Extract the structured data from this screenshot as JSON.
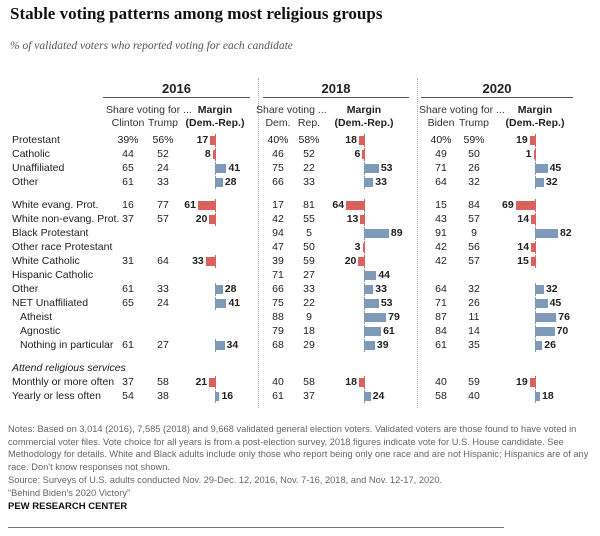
{
  "title": "Stable voting patterns among most religious groups",
  "subtitle": "% of validated voters who reported voting for each candidate",
  "chart_data": {
    "type": "table",
    "title": "Stable voting patterns among most religious groups",
    "subtitle": "% of validated voters who reported voting for each candidate",
    "colors": {
      "dem": "#7d9ab8",
      "rep": "#d9635c"
    },
    "years": [
      {
        "year": "2016",
        "share_label": "Share voting for ...",
        "dem_label": "Clinton",
        "rep_label": "Trump",
        "margin_label": "Margin",
        "margin_sub": "(Dem.-Rep.)"
      },
      {
        "year": "2018",
        "share_label": "Share voting ...",
        "dem_label": "Dem.",
        "rep_label": "Rep.",
        "margin_label": "Margin",
        "margin_sub": "(Dem.-Rep.)"
      },
      {
        "year": "2020",
        "share_label": "Share voting for ...",
        "dem_label": "Biden",
        "rep_label": "Trump",
        "margin_label": "Margin",
        "margin_sub": "(Dem.-Rep.)"
      }
    ],
    "rows": [
      {
        "label": "Protestant",
        "group": 0,
        "indent": false,
        "values": [
          {
            "d": "39%",
            "r": "56%",
            "m": 17,
            "p": "R"
          },
          {
            "d": "40%",
            "r": "58%",
            "m": 18,
            "p": "R"
          },
          {
            "d": "40%",
            "r": "59%",
            "m": 19,
            "p": "R"
          }
        ]
      },
      {
        "label": "Catholic",
        "group": 0,
        "indent": false,
        "values": [
          {
            "d": "44",
            "r": "52",
            "m": 8,
            "p": "R"
          },
          {
            "d": "46",
            "r": "52",
            "m": 6,
            "p": "R"
          },
          {
            "d": "49",
            "r": "50",
            "m": 1,
            "p": "R"
          }
        ]
      },
      {
        "label": "Unaffiliated",
        "group": 0,
        "indent": false,
        "values": [
          {
            "d": "65",
            "r": "24",
            "m": 41,
            "p": "D"
          },
          {
            "d": "75",
            "r": "22",
            "m": 53,
            "p": "D"
          },
          {
            "d": "71",
            "r": "26",
            "m": 45,
            "p": "D"
          }
        ]
      },
      {
        "label": "Other",
        "group": 0,
        "indent": false,
        "values": [
          {
            "d": "61",
            "r": "33",
            "m": 28,
            "p": "D"
          },
          {
            "d": "66",
            "r": "33",
            "m": 33,
            "p": "D"
          },
          {
            "d": "64",
            "r": "32",
            "m": 32,
            "p": "D"
          }
        ]
      },
      {
        "label": "White evang. Prot.",
        "group": 1,
        "indent": false,
        "values": [
          {
            "d": "16",
            "r": "77",
            "m": 61,
            "p": "R"
          },
          {
            "d": "17",
            "r": "81",
            "m": 64,
            "p": "R"
          },
          {
            "d": "15",
            "r": "84",
            "m": 69,
            "p": "R"
          }
        ]
      },
      {
        "label": "White non-evang. Prot.",
        "group": 1,
        "indent": false,
        "values": [
          {
            "d": "37",
            "r": "57",
            "m": 20,
            "p": "R"
          },
          {
            "d": "42",
            "r": "55",
            "m": 13,
            "p": "R"
          },
          {
            "d": "43",
            "r": "57",
            "m": 14,
            "p": "R"
          }
        ]
      },
      {
        "label": "Black Protestant",
        "group": 1,
        "indent": false,
        "values": [
          null,
          {
            "d": "94",
            "r": "5",
            "m": 89,
            "p": "D"
          },
          {
            "d": "91",
            "r": "9",
            "m": 82,
            "p": "D"
          }
        ]
      },
      {
        "label": "Other race Protestant",
        "group": 1,
        "indent": false,
        "values": [
          null,
          {
            "d": "47",
            "r": "50",
            "m": 3,
            "p": "R"
          },
          {
            "d": "42",
            "r": "56",
            "m": 14,
            "p": "R"
          }
        ]
      },
      {
        "label": "White Catholic",
        "group": 1,
        "indent": false,
        "values": [
          {
            "d": "31",
            "r": "64",
            "m": 33,
            "p": "R"
          },
          {
            "d": "39",
            "r": "59",
            "m": 20,
            "p": "R"
          },
          {
            "d": "42",
            "r": "57",
            "m": 15,
            "p": "R"
          }
        ]
      },
      {
        "label": "Hispanic Catholic",
        "group": 1,
        "indent": false,
        "values": [
          null,
          {
            "d": "71",
            "r": "27",
            "m": 44,
            "p": "D"
          },
          null
        ]
      },
      {
        "label": "Other",
        "group": 1,
        "indent": false,
        "values": [
          {
            "d": "61",
            "r": "33",
            "m": 28,
            "p": "D"
          },
          {
            "d": "66",
            "r": "33",
            "m": 33,
            "p": "D"
          },
          {
            "d": "64",
            "r": "32",
            "m": 32,
            "p": "D"
          }
        ]
      },
      {
        "label": "NET Unaffiliated",
        "group": 1,
        "indent": false,
        "values": [
          {
            "d": "65",
            "r": "24",
            "m": 41,
            "p": "D"
          },
          {
            "d": "75",
            "r": "22",
            "m": 53,
            "p": "D"
          },
          {
            "d": "71",
            "r": "26",
            "m": 45,
            "p": "D"
          }
        ]
      },
      {
        "label": "Atheist",
        "group": 1,
        "indent": true,
        "values": [
          null,
          {
            "d": "88",
            "r": "9",
            "m": 79,
            "p": "D"
          },
          {
            "d": "87",
            "r": "11",
            "m": 76,
            "p": "D"
          }
        ]
      },
      {
        "label": "Agnostic",
        "group": 1,
        "indent": true,
        "values": [
          null,
          {
            "d": "79",
            "r": "18",
            "m": 61,
            "p": "D"
          },
          {
            "d": "84",
            "r": "14",
            "m": 70,
            "p": "D"
          }
        ]
      },
      {
        "label": "Nothing in particular",
        "group": 1,
        "indent": true,
        "values": [
          {
            "d": "61",
            "r": "27",
            "m": 34,
            "p": "D"
          },
          {
            "d": "68",
            "r": "29",
            "m": 39,
            "p": "D"
          },
          {
            "d": "61",
            "r": "35",
            "m": 26,
            "p": "D"
          }
        ]
      },
      {
        "label": "Attend religious services",
        "group": 2,
        "heading": true,
        "values": [
          null,
          null,
          null
        ]
      },
      {
        "label": "Monthly or more often",
        "group": 2,
        "indent": false,
        "values": [
          {
            "d": "37",
            "r": "58",
            "m": 21,
            "p": "R"
          },
          {
            "d": "40",
            "r": "58",
            "m": 18,
            "p": "R"
          },
          {
            "d": "40",
            "r": "59",
            "m": 19,
            "p": "R"
          }
        ]
      },
      {
        "label": "Yearly or less often",
        "group": 2,
        "indent": false,
        "values": [
          {
            "d": "54",
            "r": "38",
            "m": 16,
            "p": "D"
          },
          {
            "d": "61",
            "r": "37",
            "m": 24,
            "p": "D"
          },
          {
            "d": "58",
            "r": "40",
            "m": 18,
            "p": "D"
          }
        ]
      }
    ]
  },
  "notes": [
    "Notes: Based on 3,014 (2016), 7,585 (2018) and 9,668 validated general election voters. Validated voters are those found to have voted in commercial voter files. Vote choice for all years is from a post-election survey. 2018 figures indicate vote for U.S. House candidate. See Methodology for details. White and Black adults include only those who report being only one race and are not Hispanic; Hispanics are of any race. Don't know responses not shown.",
    "Source: Surveys of U.S. adults conducted Nov. 29-Dec. 12, 2016, Nov. 7-16, 2018, and Nov. 12-17, 2020.",
    "“Behind Biden’s 2020 Victory”"
  ],
  "brand": "PEW RESEARCH CENTER"
}
